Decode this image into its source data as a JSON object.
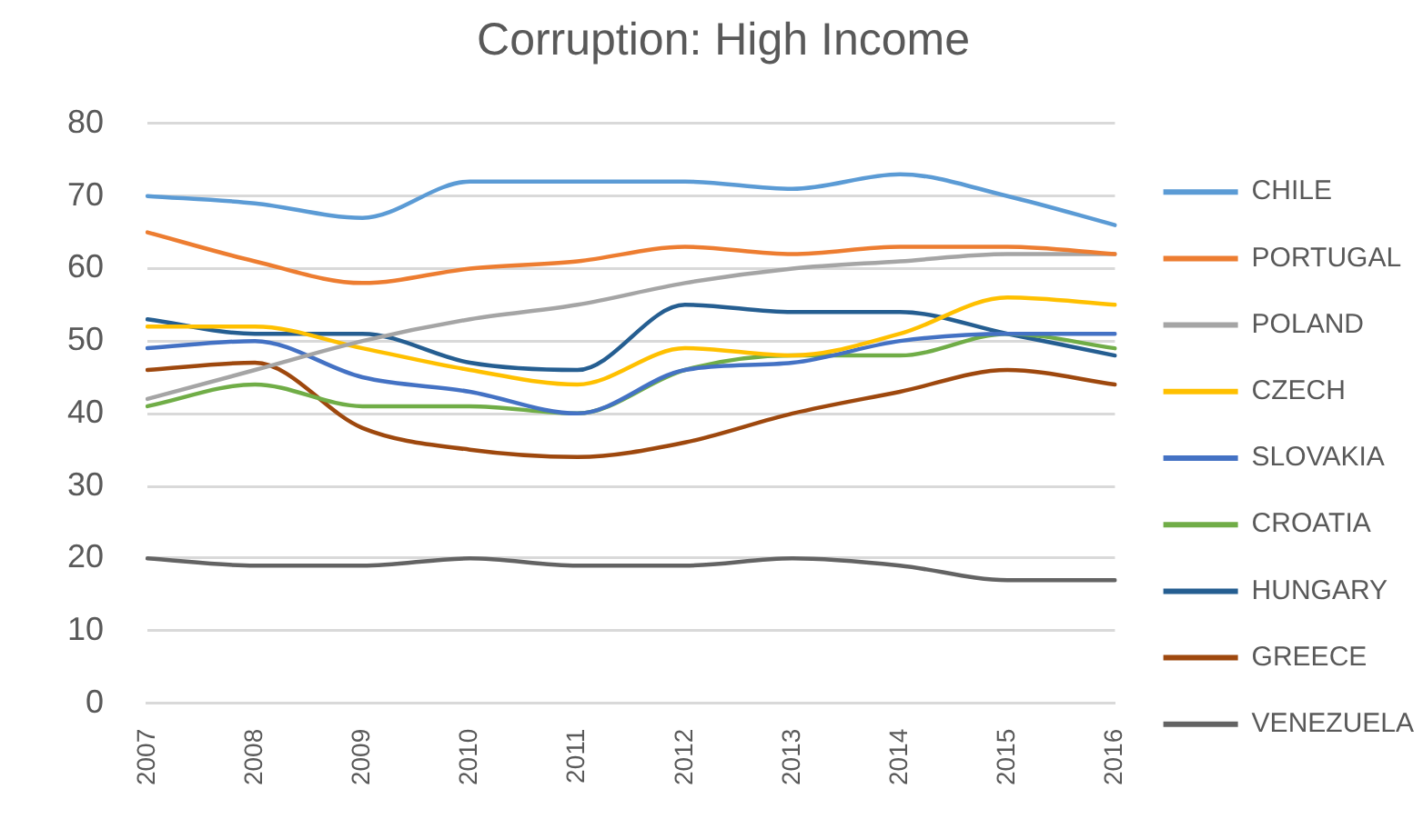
{
  "chart_data": {
    "type": "line",
    "title": "Corruption: High Income",
    "categories": [
      "2007",
      "2008",
      "2009",
      "2010",
      "2011",
      "2012",
      "2013",
      "2014",
      "2015",
      "2016"
    ],
    "series": [
      {
        "name": "CHILE",
        "color": "#5b9bd5",
        "values": [
          70,
          69,
          67,
          72,
          72,
          72,
          71,
          73,
          70,
          66
        ]
      },
      {
        "name": "PORTUGAL",
        "color": "#ed7d31",
        "values": [
          65,
          61,
          58,
          60,
          61,
          63,
          62,
          63,
          63,
          62
        ]
      },
      {
        "name": "POLAND",
        "color": "#a5a5a5",
        "values": [
          42,
          46,
          50,
          53,
          55,
          58,
          60,
          61,
          62,
          62
        ]
      },
      {
        "name": "CZECH",
        "color": "#ffc000",
        "values": [
          52,
          52,
          49,
          46,
          44,
          49,
          48,
          51,
          56,
          55
        ]
      },
      {
        "name": "SLOVAKIA",
        "color": "#4472c4",
        "values": [
          49,
          50,
          45,
          43,
          40,
          46,
          47,
          50,
          51,
          51
        ]
      },
      {
        "name": "CROATIA",
        "color": "#70ad47",
        "values": [
          41,
          44,
          41,
          41,
          40,
          46,
          48,
          48,
          51,
          49
        ]
      },
      {
        "name": "HUNGARY",
        "color": "#255e91",
        "values": [
          53,
          51,
          51,
          47,
          46,
          55,
          54,
          54,
          51,
          48
        ]
      },
      {
        "name": "GREECE",
        "color": "#9e480e",
        "values": [
          46,
          47,
          38,
          35,
          34,
          36,
          40,
          43,
          46,
          44
        ]
      },
      {
        "name": "VENEZUELA",
        "color": "#636363",
        "values": [
          20,
          19,
          19,
          20,
          19,
          19,
          20,
          19,
          17,
          17
        ]
      }
    ],
    "ylim": [
      0,
      80
    ],
    "yticks": [
      0,
      10,
      20,
      30,
      40,
      50,
      60,
      70,
      80
    ],
    "grid": "y",
    "legend": "right",
    "marker": "none",
    "line_style": "solid"
  }
}
